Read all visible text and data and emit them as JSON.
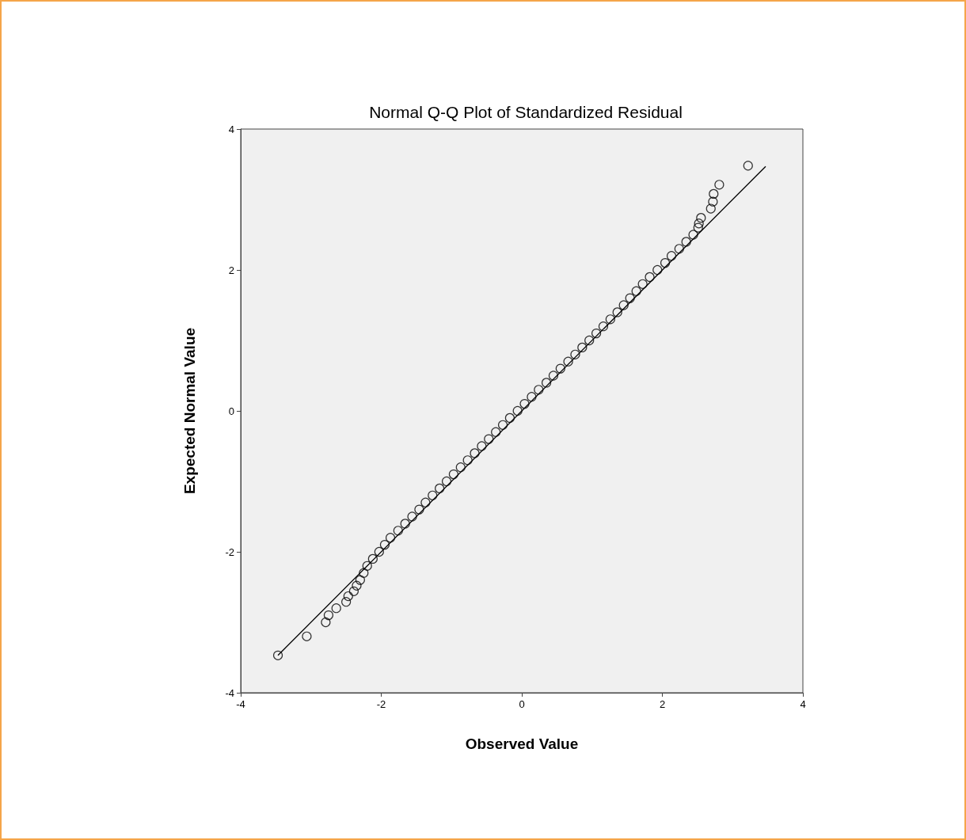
{
  "chart_data": {
    "type": "scatter",
    "title": "Normal Q-Q Plot of Standardized Residual",
    "xlabel": "Observed Value",
    "ylabel": "Expected Normal Value",
    "xlim": [
      -4,
      4
    ],
    "ylim": [
      -4,
      4
    ],
    "xticks": [
      -4,
      -2,
      0,
      2,
      4
    ],
    "yticks": [
      -4,
      -2,
      0,
      2,
      4
    ],
    "series": [
      {
        "type": "scatter",
        "color": "#000000",
        "marker": "circle",
        "x": [
          -3.47,
          -3.06,
          -2.79,
          -2.75,
          -2.64,
          -2.5,
          -2.47,
          -2.39,
          -2.35,
          -2.3,
          -2.25,
          -2.2,
          -2.12,
          -2.03,
          -1.95,
          -1.87,
          -1.76,
          -1.66,
          -1.56,
          -1.46,
          -1.37,
          -1.27,
          -1.17,
          -1.07,
          -0.97,
          -0.87,
          -0.77,
          -0.67,
          -0.57,
          -0.47,
          -0.37,
          -0.27,
          -0.17,
          -0.06,
          0.04,
          0.14,
          0.24,
          0.35,
          0.45,
          0.55,
          0.66,
          0.76,
          0.86,
          0.96,
          1.06,
          1.16,
          1.26,
          1.36,
          1.45,
          1.54,
          1.63,
          1.72,
          1.82,
          1.93,
          2.04,
          2.13,
          2.24,
          2.34,
          2.44,
          2.51,
          2.52,
          2.55,
          2.69,
          2.72,
          2.73,
          2.81,
          3.22
        ],
        "values": [
          -3.47,
          -3.2,
          -3.0,
          -2.9,
          -2.8,
          -2.71,
          -2.63,
          -2.56,
          -2.48,
          -2.4,
          -2.3,
          -2.2,
          -2.1,
          -2.0,
          -1.9,
          -1.8,
          -1.7,
          -1.6,
          -1.5,
          -1.4,
          -1.3,
          -1.2,
          -1.1,
          -1.0,
          -0.9,
          -0.8,
          -0.7,
          -0.6,
          -0.5,
          -0.4,
          -0.3,
          -0.2,
          -0.1,
          0.0,
          0.1,
          0.2,
          0.3,
          0.4,
          0.5,
          0.6,
          0.7,
          0.8,
          0.9,
          1.0,
          1.1,
          1.2,
          1.3,
          1.4,
          1.5,
          1.6,
          1.7,
          1.8,
          1.9,
          2.0,
          2.1,
          2.2,
          2.3,
          2.4,
          2.5,
          2.6,
          2.66,
          2.74,
          2.87,
          2.97,
          3.08,
          3.21,
          3.48
        ]
      },
      {
        "type": "line",
        "color": "#000000",
        "marker": "none",
        "line_style": "solid",
        "x": [
          -3.47,
          3.47
        ],
        "values": [
          -3.47,
          3.47
        ]
      }
    ]
  }
}
